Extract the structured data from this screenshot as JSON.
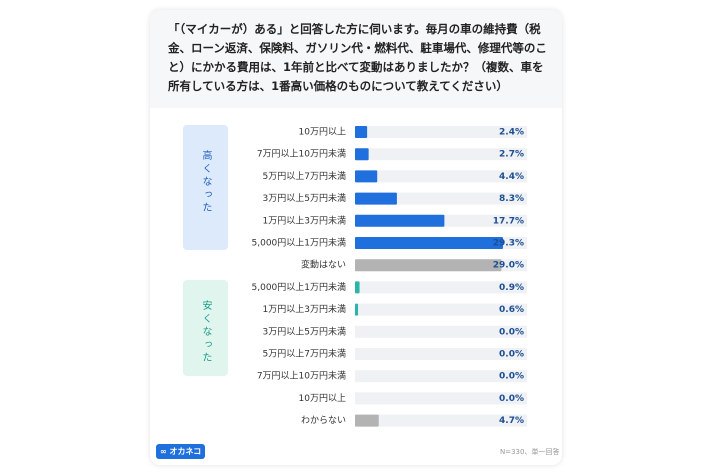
{
  "chart_data": {
    "type": "bar",
    "orientation": "horizontal",
    "title": "「（マイカーが）ある」と回答した方に伺います。毎月の車の維持費（税金、ローン返済、保険料、ガソリン代・燃料代、駐車場代、修理代等のこと）にかかる費用は、1年前と比べて変動はありましたか？（複数、車を所有している方は、1番高い価格のものについて教えてください）",
    "categories": [
      "10万円以上",
      "7万円以上10万円未満",
      "5万円以上7万円未満",
      "3万円以上5万円未満",
      "1万円以上3万円未満",
      "5,000円以上1万円未満",
      "変動はない",
      "5,000円以上1万円未満",
      "1万円以上3万円未満",
      "3万円以上5万円未満",
      "5万円以上7万円未満",
      "7万円以上10万円未満",
      "10万円以上",
      "わからない"
    ],
    "values": [
      2.4,
      2.7,
      4.4,
      8.3,
      17.7,
      29.3,
      29.0,
      0.9,
      0.6,
      0.0,
      0.0,
      0.0,
      0.0,
      4.7
    ],
    "value_labels": [
      "2.4%",
      "2.7%",
      "4.4%",
      "8.3%",
      "17.7%",
      "29.3%",
      "29.0%",
      "0.9%",
      "0.6%",
      "0.0%",
      "0.0%",
      "0.0%",
      "0.0%",
      "4.7%"
    ],
    "colors": [
      "#1f6fdc",
      "#1f6fdc",
      "#1f6fdc",
      "#1f6fdc",
      "#1f6fdc",
      "#1f6fdc",
      "#b3b3b3",
      "#2bb5a8",
      "#2bb5a8",
      "#2bb5a8",
      "#2bb5a8",
      "#2bb5a8",
      "#2bb5a8",
      "#b3b3b3"
    ],
    "groups": [
      "高くなった",
      "安くなった"
    ],
    "logo": "オカネコ",
    "note": "N=330、単一回答"
  }
}
